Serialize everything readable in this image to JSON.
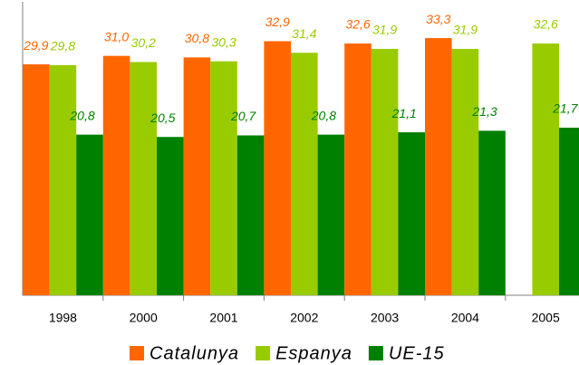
{
  "chart_data": {
    "type": "bar",
    "categories": [
      "1998",
      "2000",
      "2001",
      "2002",
      "2003",
      "2004",
      "2005"
    ],
    "series": [
      {
        "name": "Catalunya",
        "color": "#ff6600",
        "values": [
          29.9,
          31.0,
          30.8,
          32.9,
          32.6,
          33.3,
          null
        ],
        "value_labels": [
          "29,9",
          "31,0",
          "30,8",
          "32,9",
          "32,6",
          "33,3",
          null
        ]
      },
      {
        "name": "Espanya",
        "color": "#99cc00",
        "values": [
          29.8,
          30.2,
          30.3,
          31.4,
          31.9,
          31.9,
          32.6
        ],
        "value_labels": [
          "29,8",
          "30,2",
          "30,3",
          "31,4",
          "31,9",
          "31,9",
          "32,6"
        ]
      },
      {
        "name": "UE-15",
        "color": "#008000",
        "values": [
          20.8,
          20.5,
          20.7,
          20.8,
          21.1,
          21.3,
          21.7
        ],
        "value_labels": [
          "20,8",
          "20,5",
          "20,7",
          "20,8",
          "21,1",
          "21,3",
          "21,7"
        ]
      }
    ],
    "ylim": [
      0,
      38
    ],
    "legend": "bottom"
  }
}
